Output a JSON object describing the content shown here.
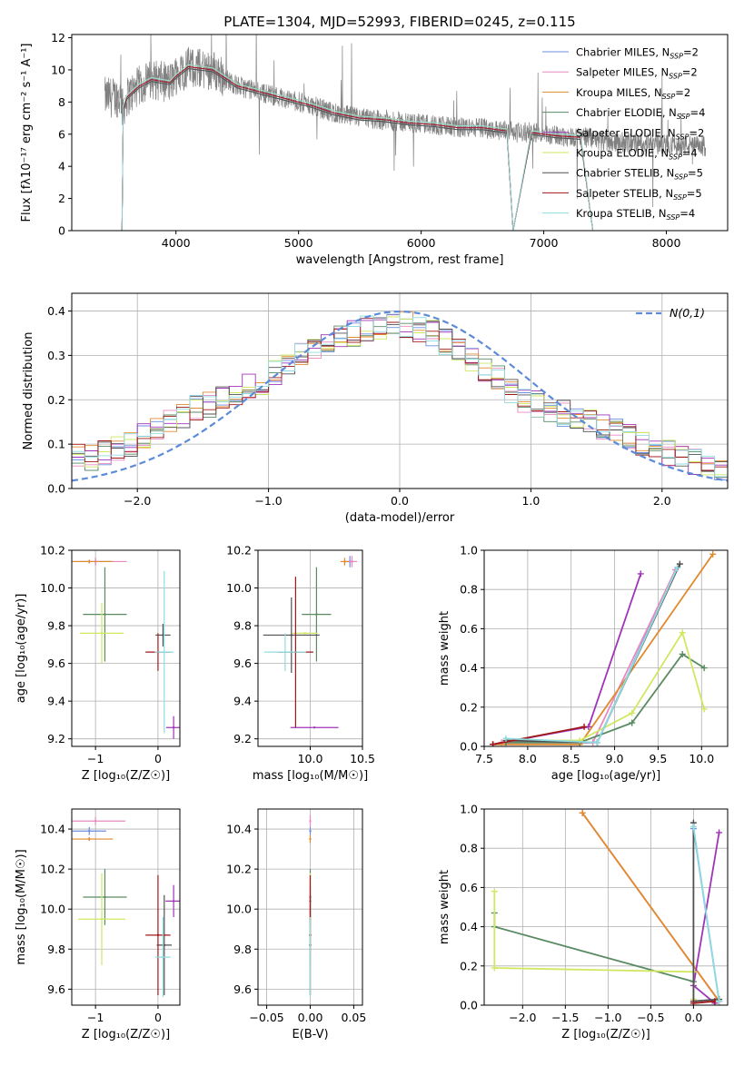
{
  "figure": {
    "title": "PLATE=1304, MJD=52993, FIBERID=0245, z=0.115"
  },
  "colors": {
    "gridline": "#b0b0b0",
    "axis": "#000000",
    "spectrum_data": "#808080",
    "normal_curve": "#5b8bd9"
  },
  "legend_models": [
    {
      "name": "Chabrier MILES",
      "nssp": "2",
      "color": "#6b8de0"
    },
    {
      "name": "Salpeter MILES",
      "nssp": "2",
      "color": "#e889c0"
    },
    {
      "name": "Kroupa MILES",
      "nssp": "2",
      "color": "#e08a2e"
    },
    {
      "name": "Chabrier ELODIE",
      "nssp": "4",
      "color": "#5a8a62"
    },
    {
      "name": "Salpeter ELODIE",
      "nssp": "2",
      "color": "#a034b8"
    },
    {
      "name": "Kroupa ELODIE",
      "nssp": "4",
      "color": "#cfe860"
    },
    {
      "name": "Chabrier STELIB",
      "nssp": "5",
      "color": "#505050"
    },
    {
      "name": "Salpeter STELIB",
      "nssp": "5",
      "color": "#a01818"
    },
    {
      "name": "Kroupa STELIB",
      "nssp": "4",
      "color": "#8fdce0"
    }
  ],
  "legend_suffix_sub": "SSP",
  "chart_data": [
    {
      "id": "spectrum",
      "type": "line",
      "xlabel": "wavelength [Angstrom, rest frame]",
      "ylabel": "Flux [fλ10⁻¹⁷ erg cm⁻² s⁻¹ A⁻¹]",
      "xlim": [
        3150,
        8500
      ],
      "ylim": [
        0,
        12.2
      ],
      "xticks": [
        4000,
        5000,
        6000,
        7000,
        8000
      ],
      "yticks": [
        0,
        2,
        4,
        6,
        8,
        10,
        12
      ],
      "grid": false,
      "legend": "upper right",
      "data_range": [
        3420,
        8320
      ],
      "model_segments": [
        {
          "x": [
            3560,
            3570,
            3600,
            3700,
            3800,
            3950,
            4000,
            4100,
            4300,
            4500,
            4700,
            4900,
            5100,
            5300,
            5500,
            5700,
            5900,
            6100,
            6300,
            6500,
            6700,
            6750,
            6900,
            7100,
            7300,
            7400
          ],
          "y": [
            0.0,
            7.6,
            8.3,
            9.0,
            9.4,
            9.2,
            9.6,
            10.2,
            10.0,
            9.0,
            8.6,
            8.2,
            7.8,
            7.3,
            7.0,
            6.9,
            6.7,
            6.6,
            6.4,
            6.4,
            6.2,
            0.0,
            6.1,
            5.9,
            5.8,
            0.0
          ]
        }
      ]
    },
    {
      "id": "residuals",
      "type": "histogram",
      "xlabel": "(data-model)/error",
      "ylabel": "Normed distribution",
      "xlim": [
        -2.5,
        2.5
      ],
      "ylim": [
        0,
        0.44
      ],
      "xticks": [
        -2,
        -1,
        0,
        1,
        2
      ],
      "yticks": [
        0.0,
        0.1,
        0.2,
        0.3,
        0.4
      ],
      "grid": true,
      "legend": "upper right",
      "curve_label": "N(0,1)",
      "curve_mean": 0,
      "curve_sigma": 1,
      "bins": 50,
      "envelope": [
        0.08,
        0.07,
        0.08,
        0.09,
        0.1,
        0.12,
        0.13,
        0.15,
        0.16,
        0.18,
        0.19,
        0.2,
        0.21,
        0.23,
        0.24,
        0.26,
        0.28,
        0.3,
        0.32,
        0.33,
        0.34,
        0.35,
        0.36,
        0.36,
        0.37,
        0.37,
        0.36,
        0.35,
        0.33,
        0.31,
        0.29,
        0.27,
        0.25,
        0.22,
        0.2,
        0.19,
        0.18,
        0.17,
        0.16,
        0.15,
        0.14,
        0.13,
        0.12,
        0.1,
        0.09,
        0.08,
        0.07,
        0.06,
        0.05,
        0.04
      ]
    },
    {
      "id": "age_vs_Z",
      "type": "errorbar",
      "xlabel": "Z [log₁₀(Z/Z☉)]",
      "ylabel": "age  [log₁₀(age/yr)]",
      "xlim": [
        -1.38,
        0.35
      ],
      "ylim": [
        9.16,
        10.2
      ],
      "xticks": [
        -1,
        0
      ],
      "yticks": [
        9.2,
        9.4,
        9.6,
        9.8,
        10.0,
        10.2
      ],
      "grid": true,
      "points": [
        {
          "model": 0,
          "x": -1.0,
          "y": 10.14,
          "xerr": 0.25,
          "yerr": 0.02
        },
        {
          "model": 1,
          "x": -1.0,
          "y": 10.14,
          "xerr": 0.5,
          "yerr": 0.02
        },
        {
          "model": 2,
          "x": -1.1,
          "y": 10.14,
          "xerr": 0.38,
          "yerr": 0.01
        },
        {
          "model": 3,
          "x": -0.85,
          "y": 9.86,
          "xerr": 0.35,
          "yerr": 0.25
        },
        {
          "model": 4,
          "x": 0.25,
          "y": 9.26,
          "xerr": 0.12,
          "yerr": 0.06
        },
        {
          "model": 5,
          "x": -0.9,
          "y": 9.76,
          "xerr": 0.35,
          "yerr": 0.16
        },
        {
          "model": 6,
          "x": 0.08,
          "y": 9.75,
          "xerr": 0.12,
          "yerr": 0.06
        },
        {
          "model": 7,
          "x": 0.0,
          "y": 9.66,
          "xerr": 0.2,
          "yerr": 0.1
        },
        {
          "model": 8,
          "x": 0.1,
          "y": 9.66,
          "xerr": 0.15,
          "yerr": 0.43
        }
      ]
    },
    {
      "id": "age_vs_mass",
      "type": "errorbar",
      "xlabel": "mass [log₁₀(M/M☉)]",
      "ylabel": "",
      "xlim": [
        9.5,
        10.5
      ],
      "ylim": [
        9.16,
        10.2
      ],
      "xticks": [
        10.0,
        10.5
      ],
      "yticks": [
        9.2,
        9.4,
        9.6,
        9.8,
        10.0,
        10.2
      ],
      "grid": true,
      "points": [
        {
          "model": 0,
          "x": 10.38,
          "y": 10.14,
          "xerr": 0.04,
          "yerr": 0.03
        },
        {
          "model": 1,
          "x": 10.4,
          "y": 10.14,
          "xerr": 0.05,
          "yerr": 0.03
        },
        {
          "model": 2,
          "x": 10.33,
          "y": 10.14,
          "xerr": 0.04,
          "yerr": 0.02
        },
        {
          "model": 3,
          "x": 10.06,
          "y": 9.86,
          "xerr": 0.14,
          "yerr": 0.25
        },
        {
          "model": 4,
          "x": 10.04,
          "y": 9.26,
          "xerr": 0.23,
          "yerr": 0.0
        },
        {
          "model": 5,
          "x": 9.95,
          "y": 9.76,
          "xerr": 0.12,
          "yerr": 0.0
        },
        {
          "model": 6,
          "x": 9.82,
          "y": 9.75,
          "xerr": 0.27,
          "yerr": 0.2
        },
        {
          "model": 7,
          "x": 9.86,
          "y": 9.66,
          "xerr": 0.17,
          "yerr": 0.4
        },
        {
          "model": 8,
          "x": 9.76,
          "y": 9.66,
          "xerr": 0.2,
          "yerr": 0.1
        }
      ]
    },
    {
      "id": "weight_vs_age",
      "type": "line",
      "xlabel": "age  [log₁₀(age/yr)]",
      "ylabel": "mass weight",
      "xlim": [
        7.5,
        10.3
      ],
      "ylim": [
        0,
        1.0
      ],
      "xticks": [
        7.5,
        8.0,
        8.5,
        9.0,
        9.5,
        10.0
      ],
      "yticks": [
        0.0,
        0.2,
        0.4,
        0.6,
        0.8,
        1.0
      ],
      "grid": true,
      "series": [
        {
          "model": 0,
          "x": [
            7.75,
            8.8,
            9.7
          ],
          "y": [
            0.02,
            0.02,
            0.9
          ]
        },
        {
          "model": 1,
          "x": [
            7.7,
            8.75,
            9.7
          ],
          "y": [
            0.02,
            0.02,
            0.9
          ]
        },
        {
          "model": 2,
          "x": [
            7.6,
            8.6,
            10.13
          ],
          "y": [
            0.01,
            0.01,
            0.98
          ]
        },
        {
          "model": 3,
          "x": [
            7.75,
            8.6,
            9.2,
            9.78,
            10.03
          ],
          "y": [
            0.02,
            0.02,
            0.12,
            0.47,
            0.4
          ]
        },
        {
          "model": 4,
          "x": [
            7.6,
            8.7,
            9.3
          ],
          "y": [
            0.01,
            0.1,
            0.88
          ]
        },
        {
          "model": 5,
          "x": [
            7.75,
            8.6,
            9.2,
            9.78,
            10.03
          ],
          "y": [
            0.03,
            0.03,
            0.17,
            0.58,
            0.19
          ]
        },
        {
          "model": 6,
          "x": [
            7.75,
            8.8,
            9.75
          ],
          "y": [
            0.03,
            0.02,
            0.93
          ]
        },
        {
          "model": 7,
          "x": [
            7.6,
            8.65
          ],
          "y": [
            0.01,
            0.1
          ]
        },
        {
          "model": 8,
          "x": [
            7.75,
            8.8,
            9.72
          ],
          "y": [
            0.04,
            0.02,
            0.91
          ]
        }
      ]
    },
    {
      "id": "mass_vs_Z",
      "type": "errorbar",
      "xlabel": "Z [log₁₀(Z/Z☉)]",
      "ylabel": "mass [log₁₀(M/M☉)]",
      "xlim": [
        -1.38,
        0.35
      ],
      "ylim": [
        9.52,
        10.5
      ],
      "xticks": [
        -1,
        0
      ],
      "yticks": [
        9.6,
        9.8,
        10.0,
        10.2,
        10.4
      ],
      "grid": true,
      "points": [
        {
          "model": 0,
          "x": -1.1,
          "y": 10.39,
          "xerr": 0.27,
          "yerr": 0.02
        },
        {
          "model": 1,
          "x": -1.0,
          "y": 10.44,
          "xerr": 0.48,
          "yerr": 0.02
        },
        {
          "model": 2,
          "x": -1.1,
          "y": 10.35,
          "xerr": 0.38,
          "yerr": 0.01
        },
        {
          "model": 3,
          "x": -0.85,
          "y": 10.06,
          "xerr": 0.35,
          "yerr": 0.14
        },
        {
          "model": 4,
          "x": 0.25,
          "y": 10.04,
          "xerr": 0.13,
          "yerr": 0.08
        },
        {
          "model": 5,
          "x": -0.9,
          "y": 9.95,
          "xerr": 0.38,
          "yerr": 0.23
        },
        {
          "model": 6,
          "x": 0.1,
          "y": 9.82,
          "xerr": 0.12,
          "yerr": 0.25
        },
        {
          "model": 7,
          "x": 0.0,
          "y": 9.87,
          "xerr": 0.2,
          "yerr": 0.3
        },
        {
          "model": 8,
          "x": 0.08,
          "y": 9.76,
          "xerr": 0.12,
          "yerr": 0.2
        }
      ]
    },
    {
      "id": "mass_vs_ebv",
      "type": "errorbar",
      "xlabel": "E(B-V)",
      "ylabel": "",
      "xlim": [
        -0.06,
        0.06
      ],
      "ylim": [
        9.52,
        10.5
      ],
      "xticks": [
        -0.05,
        0.0,
        0.05
      ],
      "yticks": [
        9.6,
        9.8,
        10.0,
        10.2,
        10.4
      ],
      "grid": true,
      "points": [
        {
          "model": 0,
          "x": 0.0,
          "y": 10.39,
          "xerr": 0.0,
          "yerr": 0.02
        },
        {
          "model": 1,
          "x": 0.0,
          "y": 10.44,
          "xerr": 0.0,
          "yerr": 0.03
        },
        {
          "model": 2,
          "x": 0.0,
          "y": 10.35,
          "xerr": 0.0,
          "yerr": 0.02
        },
        {
          "model": 3,
          "x": 0.0,
          "y": 10.06,
          "xerr": 0.0,
          "yerr": 0.14
        },
        {
          "model": 4,
          "x": 0.0,
          "y": 10.04,
          "xerr": 0.0,
          "yerr": 0.08
        },
        {
          "model": 5,
          "x": 0.0,
          "y": 9.95,
          "xerr": 0.0,
          "yerr": 0.23
        },
        {
          "model": 6,
          "x": 0.0,
          "y": 9.82,
          "xerr": 0.0,
          "yerr": 0.25
        },
        {
          "model": 7,
          "x": 0.0,
          "y": 9.87,
          "xerr": 0.0,
          "yerr": 0.3
        },
        {
          "model": 8,
          "x": 0.0,
          "y": 9.76,
          "xerr": 0.0,
          "yerr": 0.2
        }
      ]
    },
    {
      "id": "weight_vs_Z",
      "type": "line",
      "xlabel": "Z [log₁₀(Z/Z☉)]",
      "ylabel": "mass weight",
      "xlim": [
        -2.45,
        0.4
      ],
      "ylim": [
        0,
        1.0
      ],
      "xticks": [
        -2.0,
        -1.5,
        -1.0,
        -0.5,
        0.0
      ],
      "yticks": [
        0.0,
        0.2,
        0.4,
        0.6,
        0.8,
        1.0
      ],
      "grid": true,
      "series": [
        {
          "model": 0,
          "x": [
            0.0,
            0.3
          ],
          "y": [
            0.9,
            0.02
          ]
        },
        {
          "model": 1,
          "x": [
            -1.3,
            0.3
          ],
          "y": [
            0.98,
            0.02
          ]
        },
        {
          "model": 2,
          "x": [
            -1.3,
            0.3
          ],
          "y": [
            0.98,
            0.02
          ]
        },
        {
          "model": 3,
          "x": [
            -2.33,
            -2.33,
            0.0,
            0.0
          ],
          "y": [
            0.47,
            0.4,
            0.12,
            0.02
          ]
        },
        {
          "model": 4,
          "x": [
            0.3,
            0.0,
            0.25
          ],
          "y": [
            0.88,
            0.1,
            0.01
          ]
        },
        {
          "model": 5,
          "x": [
            -2.33,
            -2.33,
            0.0,
            0.0
          ],
          "y": [
            0.58,
            0.19,
            0.17,
            0.03
          ]
        },
        {
          "model": 6,
          "x": [
            0.0,
            0.0,
            0.3
          ],
          "y": [
            0.93,
            0.02,
            0.03
          ]
        },
        {
          "model": 7,
          "x": [
            0.0,
            0.25
          ],
          "y": [
            0.01,
            0.02
          ]
        },
        {
          "model": 8,
          "x": [
            0.0,
            0.3
          ],
          "y": [
            0.91,
            0.02
          ]
        }
      ]
    }
  ]
}
